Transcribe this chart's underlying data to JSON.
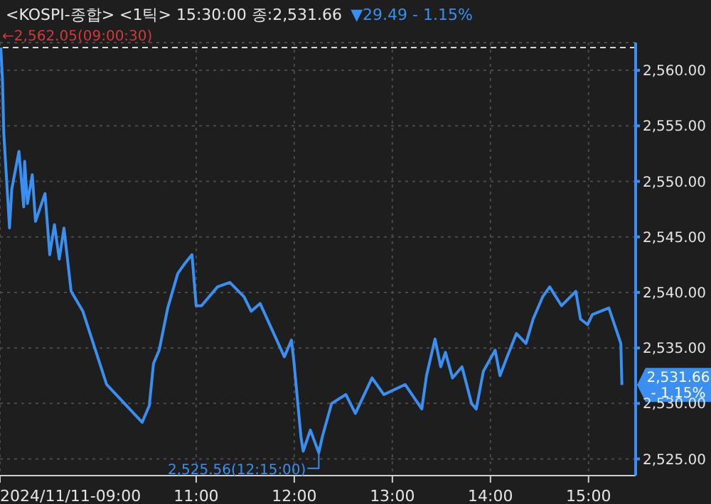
{
  "chart_data": {
    "type": "line",
    "title": "<KOSPI-종합> <1틱> 15:30:00 종:2,531.66",
    "subtitle": "▼29.49 - 1.15%",
    "series": [
      {
        "color": "#3a8ff0",
        "x": [
          9.008,
          9.025,
          9.039,
          9.097,
          9.12,
          9.193,
          9.242,
          9.251,
          9.28,
          9.329,
          9.362,
          9.459,
          9.507,
          9.555,
          9.604,
          9.652,
          9.725,
          9.845,
          10.087,
          10.449,
          10.522,
          10.565,
          10.623,
          10.71,
          10.812,
          10.884,
          10.957,
          11.0,
          11.054,
          11.217,
          11.343,
          11.488,
          11.561,
          11.652,
          11.899,
          11.971,
          11.996,
          12.068,
          12.091,
          12.164,
          12.25,
          12.286,
          12.381,
          12.526,
          12.623,
          12.793,
          12.913,
          13.13,
          13.3,
          13.348,
          13.435,
          13.493,
          13.541,
          13.613,
          13.71,
          13.807,
          13.855,
          13.928,
          14.048,
          14.097,
          14.17,
          14.265,
          14.362,
          14.435,
          14.532,
          14.604,
          14.725,
          14.87,
          14.918,
          14.99,
          15.039,
          15.207,
          15.28,
          15.329,
          15.34
        ],
        "values": [
          2562.05,
          2559.2,
          2554.3,
          2545.8,
          2549.3,
          2552.7,
          2547.7,
          2551.8,
          2548,
          2550.6,
          2546.4,
          2548.9,
          2543.4,
          2546.1,
          2543,
          2545.8,
          2540.1,
          2538.3,
          2531.7,
          2528.3,
          2529.8,
          2533.6,
          2534.8,
          2538.6,
          2541.7,
          2542.6,
          2543.4,
          2538.8,
          2538.8,
          2540.5,
          2540.9,
          2539.6,
          2538.3,
          2539,
          2534.2,
          2535.7,
          2533.8,
          2527,
          2525.7,
          2527.6,
          2525.56,
          2527,
          2530,
          2530.8,
          2529.1,
          2532.3,
          2530.8,
          2531.7,
          2529.5,
          2532.5,
          2535.8,
          2533.3,
          2534.6,
          2532.3,
          2533.3,
          2530,
          2529.5,
          2532.9,
          2534.8,
          2532.5,
          2534.2,
          2536.3,
          2535.4,
          2537.6,
          2539.6,
          2540.5,
          2538.8,
          2540.1,
          2537.6,
          2537.1,
          2538,
          2538.6,
          2536.7,
          2535.4,
          2531.66
        ]
      }
    ],
    "xlim": [
      9,
      15.48
    ],
    "xticks": [
      {
        "value": 9,
        "label": "2024/11/11-09:00"
      },
      {
        "value": 11,
        "label": "11:00"
      },
      {
        "value": 12,
        "label": "12:00"
      },
      {
        "value": 13,
        "label": "13:00"
      },
      {
        "value": 14,
        "label": "14:00"
      },
      {
        "value": 15,
        "label": "15:00"
      }
    ],
    "ylim": [
      2523.5,
      2562.5
    ],
    "yticks": [
      {
        "value": 2525,
        "label": "2,525.00"
      },
      {
        "value": 2530,
        "label": "2,530.00"
      },
      {
        "value": 2535,
        "label": "2,535.00"
      },
      {
        "value": 2540,
        "label": "2,540.00"
      },
      {
        "value": 2545,
        "label": "2,545.00"
      },
      {
        "value": 2550,
        "label": "2,550.00"
      },
      {
        "value": 2555,
        "label": "2,555.00"
      },
      {
        "value": 2560,
        "label": "2,560.00"
      }
    ],
    "ref_lines": [
      {
        "axis": "y",
        "value": 2562.05,
        "color": "#d8d8d8",
        "line_style": "dashed"
      }
    ],
    "annotations": [
      {
        "text": "←2,562.05(09:00:30)",
        "x": 9.008,
        "y": 2562.05
      },
      {
        "text": "2,525.56(12:15:00)",
        "x": 12.25,
        "y": 2525.56
      },
      {
        "text": "2,531.66 - 1.15%",
        "x": 15.34,
        "y": 2531.66
      }
    ],
    "grid": true,
    "marker": "none",
    "line_style": "solid"
  }
}
